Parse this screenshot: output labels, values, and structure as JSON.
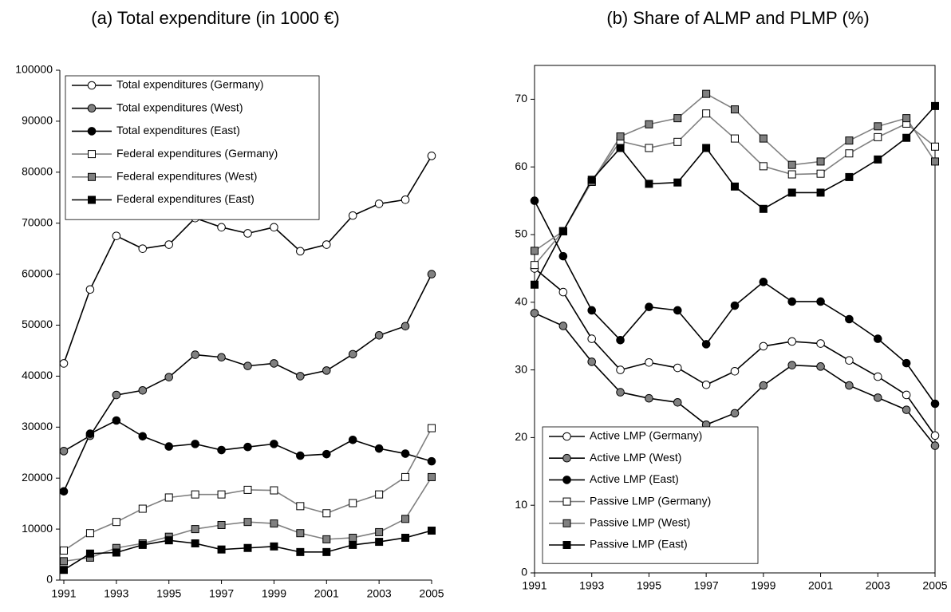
{
  "chart_data": [
    {
      "type": "line",
      "title": "(a)  Total expenditure (in 1000 €)",
      "x": [
        1991,
        1992,
        1993,
        1994,
        1995,
        1996,
        1997,
        1998,
        1999,
        2000,
        2001,
        2002,
        2003,
        2004,
        2005
      ],
      "xlim": [
        1991,
        2005
      ],
      "xticks": [
        1991,
        1993,
        1995,
        1997,
        1999,
        2001,
        2003,
        2005
      ],
      "ylim": [
        0,
        100000
      ],
      "yticks": [
        0,
        10000,
        20000,
        30000,
        40000,
        50000,
        60000,
        70000,
        80000,
        90000,
        100000
      ],
      "legend": "upper left",
      "frame": false,
      "series": [
        {
          "name": "Total expenditures (Germany)",
          "color": "#000000",
          "marker": "circle",
          "fill": "#ffffff",
          "values": [
            42500,
            57000,
            67500,
            65000,
            65800,
            71000,
            69200,
            68000,
            69200,
            64500,
            65800,
            71500,
            73800,
            74600,
            83200
          ]
        },
        {
          "name": "Total expenditures (West)",
          "color": "#000000",
          "marker": "circle",
          "fill": "#808080",
          "values": [
            25300,
            28300,
            36300,
            37200,
            39800,
            44200,
            43700,
            42000,
            42500,
            40000,
            41100,
            44300,
            48000,
            49800,
            60000
          ]
        },
        {
          "name": "Total expenditures (East)",
          "color": "#000000",
          "marker": "circle",
          "fill": "#000000",
          "values": [
            17400,
            28700,
            31300,
            28200,
            26200,
            26700,
            25500,
            26100,
            26700,
            24400,
            24700,
            27500,
            25800,
            24800,
            23300
          ]
        },
        {
          "name": "Federal expenditures (Germany)",
          "color": "#808080",
          "marker": "square",
          "fill": "#ffffff",
          "values": [
            5800,
            9200,
            11400,
            14000,
            16200,
            16800,
            16800,
            17700,
            17600,
            14500,
            13100,
            15100,
            16800,
            20200,
            29800
          ]
        },
        {
          "name": "Federal expenditures (West)",
          "color": "#808080",
          "marker": "square",
          "fill": "#808080",
          "values": [
            3700,
            4400,
            6300,
            7200,
            8500,
            10000,
            10800,
            11400,
            11100,
            9200,
            8000,
            8300,
            9400,
            12000,
            20200
          ]
        },
        {
          "name": "Federal expenditures (East)",
          "color": "#000000",
          "marker": "square",
          "fill": "#000000",
          "values": [
            2000,
            5200,
            5400,
            6900,
            7800,
            7200,
            6000,
            6300,
            6600,
            5500,
            5500,
            6900,
            7500,
            8300,
            9700
          ]
        }
      ]
    },
    {
      "type": "line",
      "title": "(b) Share of ALMP and PLMP (%)",
      "x": [
        1991,
        1992,
        1993,
        1994,
        1995,
        1996,
        1997,
        1998,
        1999,
        2000,
        2001,
        2002,
        2003,
        2004,
        2005
      ],
      "xlim": [
        1991,
        2005
      ],
      "xticks": [
        1991,
        1993,
        1995,
        1997,
        1999,
        2001,
        2003,
        2005
      ],
      "ylim": [
        0,
        75
      ],
      "yticks": [
        0,
        10,
        20,
        30,
        40,
        50,
        60,
        70
      ],
      "legend": "lower left",
      "frame": true,
      "series": [
        {
          "name": "Active LMP (Germany)",
          "color": "#000000",
          "marker": "circle",
          "fill": "#ffffff",
          "values": [
            45,
            41.5,
            34.6,
            30,
            31.1,
            30.3,
            27.8,
            29.8,
            33.5,
            34.2,
            33.9,
            31.4,
            29,
            26.3,
            20.3
          ]
        },
        {
          "name": "Active LMP (West)",
          "color": "#000000",
          "marker": "circle",
          "fill": "#808080",
          "values": [
            38.4,
            36.5,
            31.2,
            26.7,
            25.8,
            25.2,
            21.9,
            23.6,
            27.7,
            30.7,
            30.5,
            27.7,
            25.9,
            24.1,
            18.8
          ]
        },
        {
          "name": "Active LMP (East)",
          "color": "#000000",
          "marker": "circle",
          "fill": "#000000",
          "values": [
            55,
            46.8,
            38.8,
            34.4,
            39.3,
            38.8,
            33.8,
            39.5,
            43,
            40.1,
            40.1,
            37.5,
            34.6,
            31,
            25
          ]
        },
        {
          "name": "Passive LMP (Germany)",
          "color": "#808080",
          "marker": "square",
          "fill": "#ffffff",
          "values": [
            45.5,
            50.5,
            57.8,
            63.8,
            62.8,
            63.7,
            67.9,
            64.2,
            60.1,
            58.9,
            59,
            62,
            64.4,
            66.4,
            63
          ]
        },
        {
          "name": "Passive LMP (West)",
          "color": "#808080",
          "marker": "square",
          "fill": "#808080",
          "values": [
            47.6,
            50.5,
            57.8,
            64.5,
            66.3,
            67.2,
            70.8,
            68.5,
            64.2,
            60.3,
            60.8,
            63.9,
            66,
            67.2,
            60.8
          ]
        },
        {
          "name": "Passive LMP (East)",
          "color": "#000000",
          "marker": "square",
          "fill": "#000000",
          "values": [
            42.6,
            50.5,
            58.1,
            62.8,
            57.5,
            57.7,
            62.8,
            57.1,
            53.8,
            56.2,
            56.2,
            58.5,
            61.1,
            64.3,
            69
          ]
        }
      ]
    }
  ]
}
